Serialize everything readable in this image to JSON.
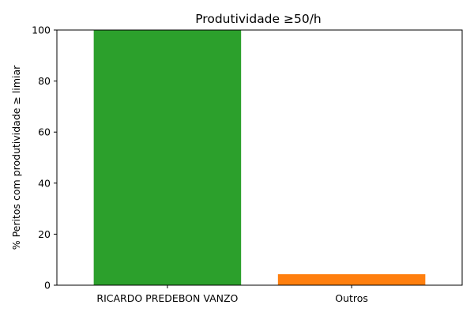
{
  "chart_data": {
    "type": "bar",
    "title": "Produtividade ≥50/h",
    "xlabel": "",
    "ylabel": "% Peritos com produtividade ≥ limiar",
    "categories": [
      "RICARDO PREDEBON VANZO",
      "Outros"
    ],
    "values": [
      100,
      4.3
    ],
    "colors": [
      "#2ca02c",
      "#ff7f0e"
    ],
    "ylim": [
      0,
      100
    ],
    "yticks": [
      0,
      20,
      40,
      60,
      80,
      100
    ],
    "grid": false,
    "legend": "none"
  }
}
